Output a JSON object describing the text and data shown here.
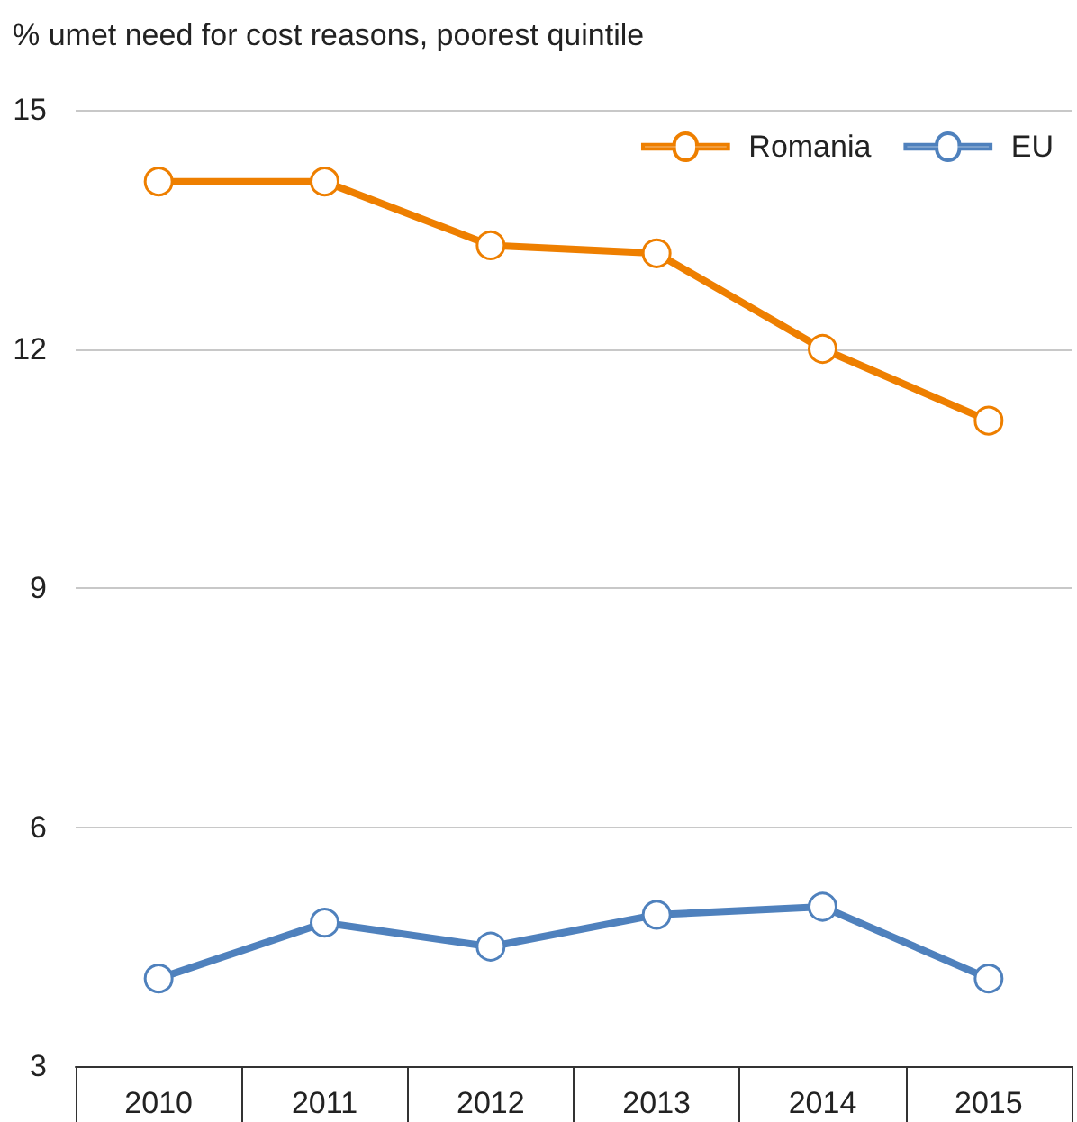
{
  "chart_data": {
    "type": "line",
    "title": "% umet need for cost reasons, poorest quintile",
    "categories": [
      "2010",
      "2011",
      "2012",
      "2013",
      "2014",
      "2015"
    ],
    "series": [
      {
        "name": "Romania",
        "color": "#ee7f00",
        "values": [
          14.1,
          14.1,
          13.3,
          13.2,
          12.0,
          11.1
        ]
      },
      {
        "name": "EU",
        "color": "#4f81bd",
        "values": [
          4.1,
          4.8,
          4.5,
          4.9,
          5.0,
          4.1
        ]
      }
    ],
    "ylim": [
      3,
      15
    ],
    "yticks": [
      3,
      6,
      9,
      12,
      15
    ],
    "grid": "y",
    "legend": "top right",
    "marker": "circle",
    "line_style": "solid"
  }
}
